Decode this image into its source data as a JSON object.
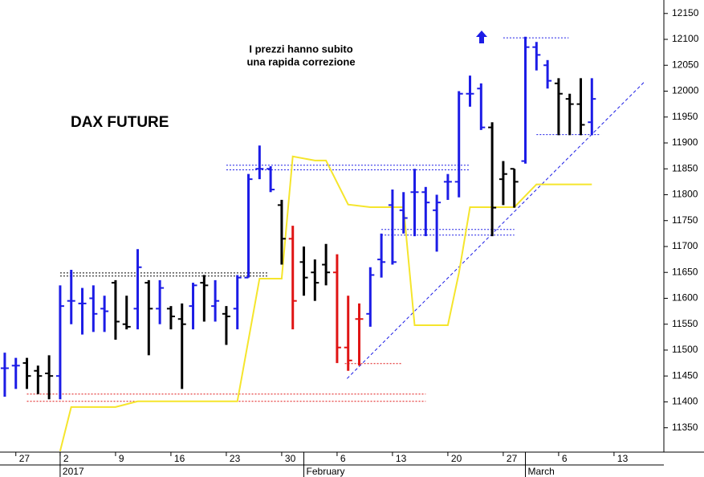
{
  "chart_data": {
    "type": "ohlc",
    "title": "DAX FUTURE",
    "annotation": [
      "I prezzi hanno subito",
      "una rapida correzione"
    ],
    "ylim": [
      11303,
      12176
    ],
    "yticks": [
      11350,
      11400,
      11450,
      11500,
      11550,
      11600,
      11650,
      11700,
      11750,
      11800,
      11850,
      11900,
      11950,
      12000,
      12050,
      12100,
      12150
    ],
    "xlim": [
      -0.43,
      59.5
    ],
    "xticks": [
      {
        "value": 1,
        "label": "27"
      },
      {
        "value": 5,
        "label": "2"
      },
      {
        "value": 10,
        "label": "9"
      },
      {
        "value": 15,
        "label": "16"
      },
      {
        "value": 20,
        "label": "23"
      },
      {
        "value": 25,
        "label": "30"
      },
      {
        "value": 30,
        "label": "6"
      },
      {
        "value": 35,
        "label": "13"
      },
      {
        "value": 40,
        "label": "20"
      },
      {
        "value": 45,
        "label": "27"
      },
      {
        "value": 50,
        "label": "6"
      },
      {
        "value": 55,
        "label": "13"
      }
    ],
    "period_labels": [
      {
        "value": 5,
        "label": "2017"
      },
      {
        "value": 27,
        "label": "February"
      },
      {
        "value": 47,
        "label": "March"
      }
    ],
    "series": [
      {
        "open": [
          11465,
          11470,
          11475,
          11460,
          11455,
          11450,
          11595,
          11590,
          11600,
          11580,
          11630,
          11550,
          11580,
          11630,
          11580,
          11580,
          11560,
          11585,
          11630,
          11585,
          11570,
          11580,
          11640,
          11850,
          11850,
          11780,
          11715,
          11670,
          11650,
          11665,
          11650,
          11505,
          11560,
          11570,
          11675,
          11780,
          11770,
          11805,
          11805,
          11770,
          11825,
          11825,
          11995,
          12005,
          11930,
          11830,
          11850,
          11865,
          12085,
          12050,
          12015,
          11985,
          11975,
          11940
        ],
        "high": [
          11495,
          11485,
          11485,
          11470,
          11490,
          11625,
          11655,
          11620,
          11625,
          11605,
          11635,
          11605,
          11695,
          11635,
          11635,
          11585,
          11590,
          11630,
          11645,
          11635,
          11585,
          11645,
          11840,
          11895,
          11855,
          11790,
          11740,
          11700,
          11675,
          11705,
          11685,
          11605,
          11590,
          11660,
          11725,
          11810,
          11805,
          11850,
          11815,
          11800,
          11840,
          12000,
          12030,
          12015,
          11940,
          11865,
          11850,
          12105,
          12095,
          12060,
          12025,
          11995,
          12025,
          12025
        ],
        "low": [
          11410,
          11425,
          11425,
          11415,
          11405,
          11405,
          11550,
          11530,
          11535,
          11535,
          11520,
          11540,
          11540,
          11490,
          11550,
          11540,
          11425,
          11540,
          11555,
          11555,
          11510,
          11540,
          11640,
          11830,
          11805,
          11665,
          11540,
          11605,
          11595,
          11625,
          11475,
          11460,
          11470,
          11545,
          11640,
          11665,
          11725,
          11720,
          11720,
          11690,
          11790,
          11795,
          11970,
          11925,
          11720,
          11780,
          11775,
          11860,
          12040,
          12005,
          11915,
          11915,
          11915,
          11915
        ],
        "close": [
          11465,
          11470,
          11450,
          11450,
          11450,
          11585,
          11595,
          11590,
          11570,
          11575,
          11555,
          11545,
          11660,
          11580,
          11620,
          11565,
          11550,
          11625,
          11625,
          11595,
          11565,
          11640,
          11830,
          11850,
          11810,
          11715,
          11595,
          11640,
          11630,
          11650,
          11505,
          11480,
          11560,
          11645,
          11670,
          11670,
          11755,
          11805,
          11785,
          11785,
          11825,
          11995,
          11995,
          11930,
          11775,
          11840,
          11825,
          12085,
          12070,
          12020,
          11995,
          11975,
          11935,
          11985
        ],
        "colors": [
          "#1c1ce6",
          "#1c1ce6",
          "#000000",
          "#000000",
          "#000000",
          "#1c1ce6",
          "#1c1ce6",
          "#1c1ce6",
          "#1c1ce6",
          "#1c1ce6",
          "#000000",
          "#000000",
          "#1c1ce6",
          "#000000",
          "#1c1ce6",
          "#000000",
          "#000000",
          "#1c1ce6",
          "#000000",
          "#1c1ce6",
          "#000000",
          "#1c1ce6",
          "#1c1ce6",
          "#1c1ce6",
          "#1c1ce6",
          "#000000",
          "#e01414",
          "#000000",
          "#000000",
          "#000000",
          "#e01414",
          "#e01414",
          "#e01414",
          "#1c1ce6",
          "#1c1ce6",
          "#1c1ce6",
          "#1c1ce6",
          "#1c1ce6",
          "#1c1ce6",
          "#1c1ce6",
          "#1c1ce6",
          "#1c1ce6",
          "#1c1ce6",
          "#1c1ce6",
          "#000000",
          "#000000",
          "#000000",
          "#1c1ce6",
          "#1c1ce6",
          "#1c1ce6",
          "#000000",
          "#000000",
          "#000000",
          "#1c1ce6"
        ]
      }
    ],
    "lines": [
      {
        "color": "#f5e52c",
        "x": [
          5,
          6,
          10,
          12,
          21,
          23,
          25,
          26,
          28,
          29,
          31,
          33,
          36,
          37,
          40,
          41,
          42,
          46,
          48,
          53
        ],
        "values": [
          11305,
          11390,
          11390,
          11401,
          11401,
          11638,
          11638,
          11874,
          11866,
          11866,
          11781,
          11776,
          11776,
          11548,
          11548,
          11649,
          11776,
          11776,
          11820,
          11820
        ]
      }
    ],
    "levels": [
      {
        "y": 11649,
        "x": [
          5,
          23.8
        ],
        "color": "#000000"
      },
      {
        "y": 11643,
        "x": [
          5,
          23.8
        ],
        "color": "#000000"
      },
      {
        "y": 11857,
        "x": [
          20,
          42
        ],
        "color": "#1c1ce6"
      },
      {
        "y": 11848,
        "x": [
          20,
          42
        ],
        "color": "#1c1ce6"
      },
      {
        "y": 11733,
        "x": [
          34,
          46
        ],
        "color": "#1c1ce6"
      },
      {
        "y": 11722,
        "x": [
          34,
          46
        ],
        "color": "#1c1ce6"
      },
      {
        "y": 11415,
        "x": [
          2,
          38
        ],
        "color": "#e01414"
      },
      {
        "y": 11401,
        "x": [
          2,
          38
        ],
        "color": "#e01414"
      },
      {
        "y": 11474,
        "x": [
          30.7,
          35.8
        ],
        "color": "#e01414"
      },
      {
        "y": 12103,
        "x": [
          45,
          50.9
        ],
        "color": "#1c1ce6"
      },
      {
        "y": 11916,
        "x": [
          48,
          53.8
        ],
        "color": "#1c1ce6"
      }
    ],
    "trendlines": [
      {
        "x": [
          30.9,
          57.7
        ],
        "y": [
          11445,
          12017
        ],
        "color": "#1c1ce6"
      }
    ]
  }
}
